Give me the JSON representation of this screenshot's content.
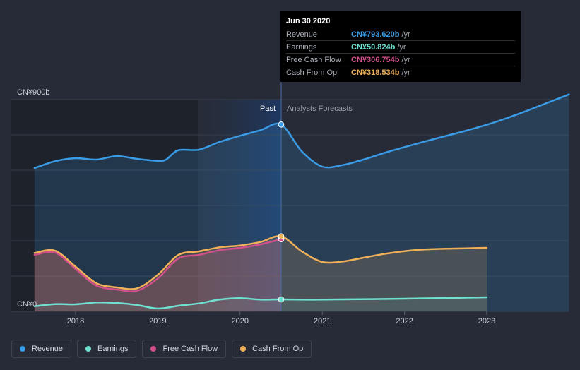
{
  "tooltip": {
    "date": "Jun 30 2020",
    "rows": [
      {
        "label": "Revenue",
        "value": "CN¥793.620b",
        "unit": "/yr",
        "color": "#3a9be6"
      },
      {
        "label": "Earnings",
        "value": "CN¥50.824b",
        "unit": "/yr",
        "color": "#6fe1d0"
      },
      {
        "label": "Free Cash Flow",
        "value": "CN¥306.754b",
        "unit": "/yr",
        "color": "#d14f8a"
      },
      {
        "label": "Cash From Op",
        "value": "CN¥318.534b",
        "unit": "/yr",
        "color": "#f0b05a"
      }
    ]
  },
  "legend": [
    {
      "label": "Revenue",
      "color": "#3a9be6"
    },
    {
      "label": "Earnings",
      "color": "#6fe1d0"
    },
    {
      "label": "Free Cash Flow",
      "color": "#d14f8a"
    },
    {
      "label": "Cash From Op",
      "color": "#f0b05a"
    }
  ],
  "chart_data": {
    "type": "line",
    "y_top_label": "CN¥900b",
    "y_bottom_label": "CN¥0",
    "ylim": [
      0,
      900
    ],
    "xlim": [
      2017.5,
      2024.0
    ],
    "x_ticks": [
      2018,
      2019,
      2020,
      2021,
      2022,
      2023
    ],
    "x_tick_labels": [
      "2018",
      "2019",
      "2020",
      "2021",
      "2022",
      "2023"
    ],
    "past_label": "Past",
    "forecast_label": "Analysts Forecasts",
    "present_x": 2020.5,
    "series": [
      {
        "name": "Revenue",
        "color": "#3a9be6",
        "points": [
          [
            2017.5,
            609
          ],
          [
            2017.75,
            638
          ],
          [
            2018.0,
            651
          ],
          [
            2018.25,
            645
          ],
          [
            2018.5,
            660
          ],
          [
            2018.75,
            648
          ],
          [
            2019.0,
            640
          ],
          [
            2019.1,
            645
          ],
          [
            2019.25,
            685
          ],
          [
            2019.5,
            687
          ],
          [
            2019.75,
            720
          ],
          [
            2020.0,
            746
          ],
          [
            2020.25,
            770
          ],
          [
            2020.5,
            794
          ],
          [
            2020.75,
            680
          ],
          [
            2021.0,
            615
          ],
          [
            2021.25,
            622
          ],
          [
            2021.5,
            645
          ],
          [
            2021.75,
            673
          ],
          [
            2022.0,
            698
          ],
          [
            2022.25,
            722
          ],
          [
            2022.5,
            745
          ],
          [
            2022.75,
            768
          ],
          [
            2023.0,
            793
          ],
          [
            2023.25,
            822
          ],
          [
            2023.5,
            854
          ],
          [
            2023.75,
            888
          ],
          [
            2024.0,
            922
          ]
        ]
      },
      {
        "name": "Earnings",
        "color": "#6fe1d0",
        "points": [
          [
            2017.5,
            22
          ],
          [
            2017.75,
            31
          ],
          [
            2018.0,
            30
          ],
          [
            2018.25,
            38
          ],
          [
            2018.5,
            36
          ],
          [
            2018.75,
            27
          ],
          [
            2019.0,
            12
          ],
          [
            2019.25,
            24
          ],
          [
            2019.5,
            34
          ],
          [
            2019.75,
            50
          ],
          [
            2020.0,
            56
          ],
          [
            2020.25,
            50
          ],
          [
            2020.5,
            51
          ],
          [
            2021.0,
            50
          ],
          [
            2022.0,
            54
          ],
          [
            2023.0,
            60
          ]
        ]
      },
      {
        "name": "Free Cash Flow",
        "color": "#d14f8a",
        "points": [
          [
            2017.5,
            240
          ],
          [
            2017.75,
            250
          ],
          [
            2018.0,
            180
          ],
          [
            2018.25,
            110
          ],
          [
            2018.5,
            93
          ],
          [
            2018.75,
            88
          ],
          [
            2019.0,
            140
          ],
          [
            2019.25,
            225
          ],
          [
            2019.5,
            240
          ],
          [
            2019.75,
            260
          ],
          [
            2020.0,
            270
          ],
          [
            2020.25,
            285
          ],
          [
            2020.5,
            307
          ]
        ]
      },
      {
        "name": "Cash From Op",
        "color": "#f0b05a",
        "points": [
          [
            2017.5,
            248
          ],
          [
            2017.75,
            258
          ],
          [
            2018.0,
            190
          ],
          [
            2018.25,
            120
          ],
          [
            2018.5,
            102
          ],
          [
            2018.75,
            98
          ],
          [
            2019.0,
            155
          ],
          [
            2019.25,
            240
          ],
          [
            2019.5,
            255
          ],
          [
            2019.75,
            272
          ],
          [
            2020.0,
            280
          ],
          [
            2020.25,
            295
          ],
          [
            2020.5,
            319
          ],
          [
            2020.75,
            255
          ],
          [
            2021.0,
            210
          ],
          [
            2021.25,
            212
          ],
          [
            2021.5,
            228
          ],
          [
            2021.75,
            244
          ],
          [
            2022.0,
            256
          ],
          [
            2022.25,
            263
          ],
          [
            2022.5,
            266
          ],
          [
            2022.75,
            268
          ],
          [
            2023.0,
            270
          ]
        ]
      }
    ]
  }
}
